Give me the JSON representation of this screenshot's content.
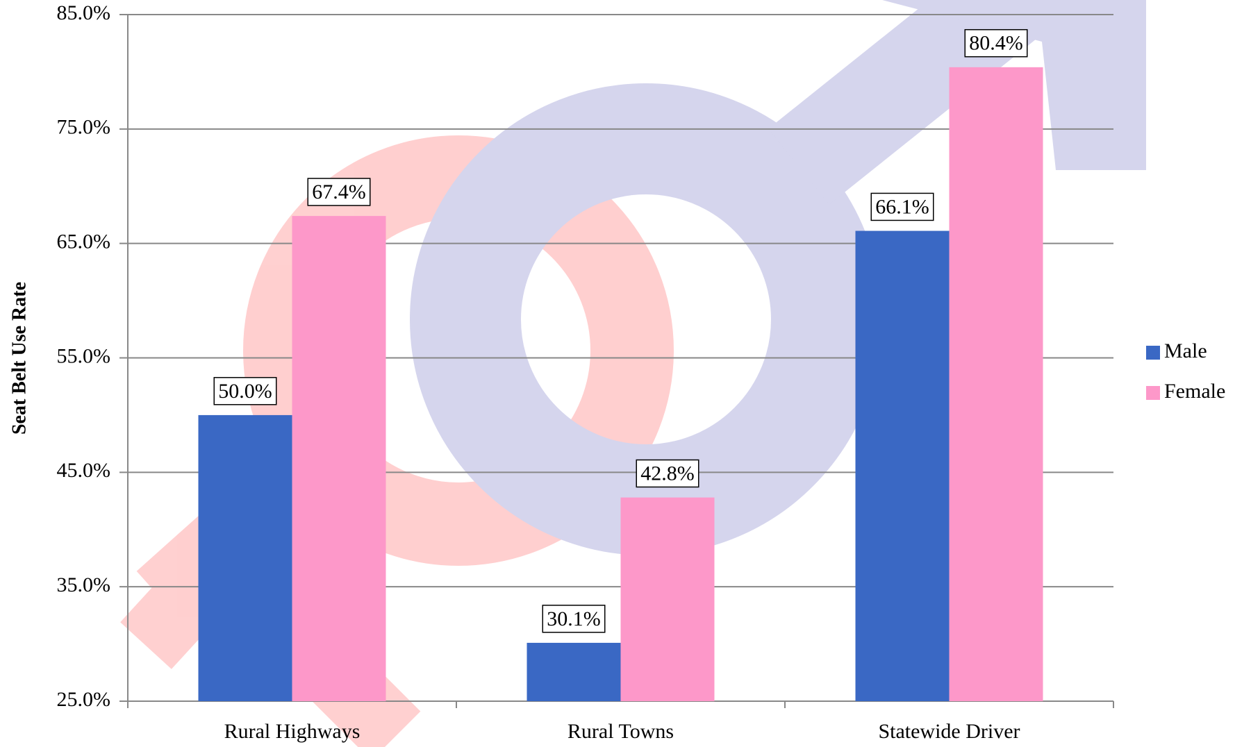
{
  "chart_data": {
    "type": "bar",
    "y_label": "Seat Belt Use Rate",
    "categories": [
      "Rural Highways",
      "Rural Towns",
      "Statewide Driver"
    ],
    "series": [
      {
        "name": "Male",
        "color": "#3a68c4",
        "values": [
          50.0,
          30.1,
          66.1
        ],
        "value_labels": [
          "50.0%",
          "30.1%",
          "66.1%"
        ]
      },
      {
        "name": "Female",
        "color": "#fd98c9",
        "values": [
          67.4,
          42.8,
          80.4
        ],
        "value_labels": [
          "67.4%",
          "42.8%",
          "80.4%"
        ]
      }
    ],
    "ylim": [
      25,
      85
    ],
    "yticks": [
      {
        "value": 25,
        "label": "25.0%"
      },
      {
        "value": 35,
        "label": "35.0%"
      },
      {
        "value": 45,
        "label": "45.0%"
      },
      {
        "value": 55,
        "label": "55.0%"
      },
      {
        "value": 65,
        "label": "65.0%"
      },
      {
        "value": 75,
        "label": "75.0%"
      },
      {
        "value": 85,
        "label": "85.0%"
      }
    ],
    "grid": true,
    "legend": "right"
  }
}
